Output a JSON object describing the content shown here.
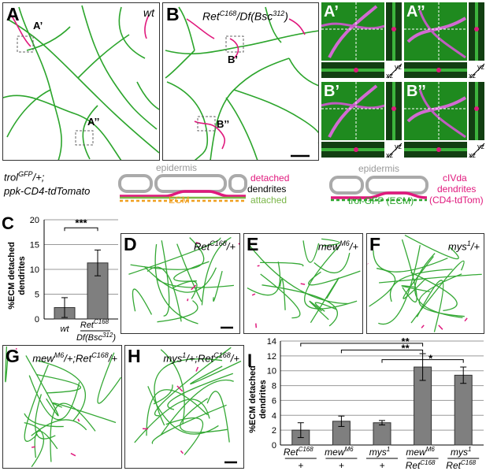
{
  "panels": {
    "A": {
      "label": "A",
      "genotype": "wt",
      "inset1": "A’",
      "inset2": "A’’"
    },
    "B": {
      "label": "B",
      "genotype_base": "Ret",
      "genotype_sup": "C168",
      "genotype_mid": "/Df(Bsc",
      "genotype_sup2": "312",
      "genotype_end": ")",
      "inset1": "B’",
      "inset2": "B’’"
    },
    "zooms": [
      {
        "label": "A’",
        "yz": "yz",
        "xz": "xz"
      },
      {
        "label": "A’’",
        "yz": "yz",
        "xz": "xz"
      },
      {
        "label": "B’",
        "yz": "yz",
        "xz": "xz"
      },
      {
        "label": "B’’",
        "yz": "yz",
        "xz": "xz"
      }
    ],
    "D": {
      "label": "D",
      "g1": "Ret",
      "s1": "C168",
      "g2": "/+"
    },
    "E": {
      "label": "E",
      "g1": "mew",
      "s1": "M6",
      "g2": "/+"
    },
    "F": {
      "label": "F",
      "g1": "mys",
      "s1": "1",
      "g2": "/+"
    },
    "G": {
      "label": "G",
      "g1": "mew",
      "s1": "M6",
      "g2": "/+;Ret",
      "s2": "C168",
      "g3": "/+"
    },
    "H": {
      "label": "H",
      "g1": "mys",
      "s1": "1",
      "g2": "/+;Ret",
      "s2": "C168",
      "g3": "/+"
    }
  },
  "legend": {
    "genotype_line1": "trol",
    "genotype_line1_sup": "GFP",
    "genotype_line1_end": "/+;",
    "genotype_line2": "ppk-CD4-tdTomato",
    "left_diagram": {
      "epidermis": "epidermis",
      "detached": "detached",
      "dendrites": "dendrites",
      "attached": "attached",
      "ecm": "ECM"
    },
    "right_diagram": {
      "epidermis": "epidermis",
      "trol": "trol-GFP (ECM)",
      "civda": "cIVda",
      "dendrites": "dendrites",
      "tdtom": "(CD4-tdTom)"
    }
  },
  "colors": {
    "magenta": "#e0197d",
    "green": "#2ca52c",
    "orange": "#f0a020",
    "gray": "#808080",
    "ecm_green": "#7ab648"
  },
  "chart_C": {
    "label": "C",
    "ylabel_line1": "%ECM detached",
    "ylabel_line2": "dendrites",
    "significance": "***",
    "cat1": "wt",
    "cat2_line1": "Ret",
    "cat2_sup": "C168",
    "cat2_line2": "Df(Bsc",
    "cat2_sup2": "312",
    "cat2_end": ")"
  },
  "chart_I": {
    "label": "I",
    "ylabel_line1": "%ECM detached",
    "ylabel_line2": "dendrites",
    "cats": [
      {
        "top": "Ret",
        "top_sup": "C168",
        "bottom": "+"
      },
      {
        "top": "mew",
        "top_sup": "M6",
        "bottom": "+"
      },
      {
        "top": "mys",
        "top_sup": "1",
        "bottom": "+"
      },
      {
        "top": "mew",
        "top_sup": "M6",
        "bottom": "Ret",
        "bottom_sup": "C168"
      },
      {
        "top": "mys",
        "top_sup": "1",
        "bottom": "Ret",
        "bottom_sup": "C168"
      }
    ],
    "sig": [
      "**",
      "**",
      "*"
    ]
  },
  "chart_data": [
    {
      "type": "bar",
      "categories": [
        "wt",
        "RetC168/Df(Bsc312)"
      ],
      "values": [
        2.3,
        11.3
      ],
      "errors": [
        2.0,
        2.6
      ],
      "ylabel": "%ECM detached dendrites",
      "ylim": [
        0,
        20
      ],
      "yticks": [
        0,
        5,
        10,
        15,
        20
      ],
      "grid": true
    },
    {
      "type": "bar",
      "categories": [
        "RetC168/+",
        "mewM6/+",
        "mys1/+",
        "mewM6/RetC168",
        "mys1/RetC168"
      ],
      "values": [
        2.0,
        3.2,
        3.0,
        10.5,
        9.4
      ],
      "errors": [
        1.0,
        0.7,
        0.3,
        1.8,
        1.1
      ],
      "ylabel": "%ECM detached dendrites",
      "ylim": [
        0,
        14
      ],
      "yticks": [
        0,
        2,
        4,
        6,
        8,
        10,
        12,
        14
      ],
      "grid": true
    }
  ]
}
